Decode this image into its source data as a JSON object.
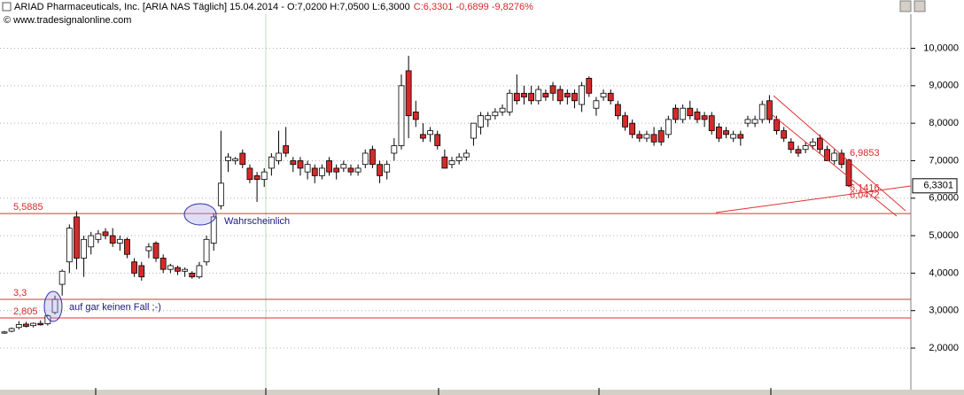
{
  "chart_data": {
    "type": "candlestick",
    "title": "ARIAD Pharmaceuticals, Inc. [ARIA NAS  Täglich] 15.04.2014 - O:7,0200 H:7,0500 L:6,3000",
    "title_change": "C:6,3301 -0,6899 -9,8276%",
    "source": "© www.tradesignalonline.com",
    "up_color": "#ffffff",
    "down_color": "#d42a2a",
    "ylim": [
      0.89,
      10.91
    ],
    "yticks": [
      {
        "value": 2,
        "label": "2,0000"
      },
      {
        "value": 3,
        "label": "3,0000"
      },
      {
        "value": 4,
        "label": "4,0000"
      },
      {
        "value": 5,
        "label": "5,0000"
      },
      {
        "value": 6,
        "label": "6,0000"
      },
      {
        "value": 7,
        "label": "7,0000"
      },
      {
        "value": 8,
        "label": "8,0000"
      },
      {
        "value": 9,
        "label": "9,0000"
      },
      {
        "value": 10,
        "label": "10,0000"
      }
    ],
    "grid": true,
    "last_price": {
      "value": 6.3301,
      "label": "6,3301"
    },
    "levels": [
      {
        "value": 5.5885,
        "label": "5,5885"
      },
      {
        "value": 3.3,
        "label": "3,3"
      },
      {
        "value": 2.805,
        "label": "2,805"
      }
    ],
    "price_labels": [
      {
        "value": 6.9853,
        "label": "6,9853"
      },
      {
        "value": 6.1416,
        "label": "6,1416"
      },
      {
        "value": 6.0472,
        "label": "6,0472"
      }
    ],
    "annotations": [
      "Wahrscheinlich",
      "auf gar keinen Fall ;-)"
    ],
    "open": [
      2.4,
      2.45,
      2.55,
      2.64,
      2.6,
      2.66,
      2.65,
      2.95,
      3.7,
      4.3,
      5.5,
      4.4,
      4.7,
      4.9,
      5.1,
      5.0,
      4.8,
      4.9,
      4.3,
      4.2,
      4.6,
      4.8,
      4.4,
      4.1,
      4.15,
      4.05,
      4.0,
      3.9,
      4.3,
      4.8,
      5.8,
      7.0,
      7.0,
      7.2,
      6.8,
      6.6,
      6.5,
      6.8,
      7.0,
      7.4,
      7.0,
      7.0,
      6.7,
      6.8,
      6.6,
      7.0,
      6.8,
      6.8,
      6.8,
      6.7,
      6.9,
      7.3,
      6.9,
      6.7,
      7.2,
      7.4,
      9.4,
      8.3,
      7.7,
      7.7,
      7.7,
      7.1,
      6.9,
      7.0,
      7.1,
      7.6,
      7.9,
      8.1,
      8.2,
      8.3,
      8.3,
      8.8,
      8.8,
      8.8,
      8.6,
      8.8,
      9.0,
      8.9,
      8.8,
      8.8,
      8.5,
      9.2,
      8.4,
      8.7,
      8.8,
      8.5,
      8.2,
      8.0,
      7.7,
      7.6,
      7.7,
      7.8,
      7.7,
      8.4,
      8.1,
      8.4,
      8.3,
      8.2,
      8.2,
      7.9,
      7.8,
      7.6,
      7.7,
      8.0,
      8.0,
      8.1,
      8.6,
      8.1,
      7.8,
      7.5,
      7.3,
      7.3,
      7.4,
      7.6,
      7.3,
      7.0,
      7.2,
      7.02
    ],
    "high": [
      2.46,
      2.55,
      2.72,
      2.7,
      2.68,
      2.74,
      2.9,
      3.4,
      4.1,
      5.3,
      5.65,
      5.0,
      5.1,
      5.15,
      5.2,
      5.2,
      5.0,
      4.95,
      4.4,
      4.3,
      4.8,
      4.85,
      4.5,
      4.25,
      4.2,
      4.15,
      4.05,
      4.3,
      5.0,
      5.6,
      7.8,
      7.2,
      7.1,
      7.3,
      6.9,
      6.7,
      6.8,
      7.2,
      7.8,
      7.9,
      7.1,
      7.1,
      7.0,
      6.9,
      6.9,
      7.1,
      6.9,
      7.0,
      6.9,
      6.9,
      7.3,
      7.4,
      7.0,
      7.0,
      7.6,
      9.3,
      9.8,
      8.6,
      8.0,
      7.9,
      7.8,
      7.3,
      7.1,
      7.2,
      7.3,
      8.0,
      8.3,
      8.3,
      8.4,
      8.5,
      8.9,
      9.3,
      9.0,
      9.0,
      9.0,
      8.9,
      9.1,
      9.0,
      8.9,
      8.9,
      9.1,
      9.25,
      8.7,
      8.9,
      8.9,
      8.6,
      8.3,
      8.1,
      7.8,
      7.8,
      7.9,
      7.9,
      8.2,
      8.5,
      8.5,
      8.6,
      8.4,
      8.3,
      8.3,
      8.0,
      7.9,
      7.8,
      7.8,
      8.2,
      8.2,
      8.6,
      8.75,
      8.2,
      7.9,
      7.6,
      7.4,
      7.5,
      7.6,
      7.7,
      7.4,
      7.3,
      7.3,
      7.05
    ],
    "low": [
      2.38,
      2.42,
      2.5,
      2.55,
      2.55,
      2.6,
      2.6,
      2.9,
      3.4,
      4.0,
      4.1,
      3.9,
      4.5,
      4.8,
      4.9,
      4.7,
      4.6,
      4.4,
      3.9,
      3.8,
      4.4,
      4.3,
      4.0,
      4.0,
      3.95,
      3.9,
      3.85,
      3.85,
      4.2,
      4.6,
      5.7,
      6.7,
      6.9,
      6.8,
      6.4,
      5.9,
      6.3,
      6.6,
      6.9,
      7.1,
      6.7,
      6.6,
      6.5,
      6.4,
      6.5,
      6.6,
      6.5,
      6.7,
      6.6,
      6.6,
      6.8,
      6.8,
      6.4,
      6.5,
      7.0,
      7.3,
      7.6,
      7.9,
      7.5,
      7.5,
      7.3,
      6.8,
      6.8,
      6.9,
      7.0,
      7.4,
      7.7,
      7.9,
      8.1,
      8.2,
      8.2,
      8.5,
      8.5,
      8.5,
      8.5,
      8.6,
      8.6,
      8.5,
      8.5,
      8.4,
      8.3,
      8.7,
      8.2,
      8.6,
      8.5,
      8.1,
      7.8,
      7.6,
      7.5,
      7.5,
      7.4,
      7.4,
      7.6,
      8.0,
      8.0,
      8.1,
      8.0,
      7.9,
      7.7,
      7.5,
      7.6,
      7.5,
      7.4,
      7.9,
      7.9,
      8.0,
      8.0,
      7.7,
      7.5,
      7.2,
      7.1,
      7.2,
      7.3,
      7.2,
      7.0,
      6.9,
      6.8,
      6.3
    ],
    "close": [
      2.43,
      2.52,
      2.63,
      2.58,
      2.66,
      2.62,
      2.86,
      3.3,
      4.05,
      5.2,
      4.4,
      4.9,
      5.0,
      5.05,
      5.0,
      4.8,
      4.9,
      4.5,
      4.0,
      3.9,
      4.7,
      4.4,
      4.1,
      4.2,
      4.05,
      4.1,
      3.9,
      4.2,
      4.9,
      5.5,
      6.4,
      7.1,
      7.05,
      6.9,
      6.5,
      6.5,
      6.7,
      7.1,
      7.2,
      7.2,
      6.9,
      6.8,
      6.9,
      6.6,
      6.8,
      6.7,
      6.7,
      6.9,
      6.7,
      6.8,
      7.2,
      6.9,
      6.6,
      6.9,
      7.4,
      9.0,
      8.2,
      8.1,
      7.6,
      7.8,
      7.4,
      6.8,
      7.0,
      7.1,
      7.2,
      8.0,
      8.2,
      8.2,
      8.3,
      8.4,
      8.8,
      8.6,
      8.7,
      8.6,
      8.9,
      8.7,
      8.8,
      8.6,
      8.7,
      8.6,
      9.0,
      8.8,
      8.6,
      8.8,
      8.6,
      8.2,
      7.9,
      7.7,
      7.6,
      7.7,
      7.5,
      7.5,
      8.1,
      8.1,
      8.4,
      8.2,
      8.1,
      8.1,
      7.8,
      7.6,
      7.7,
      7.7,
      7.6,
      8.1,
      8.1,
      8.5,
      8.1,
      7.8,
      7.6,
      7.3,
      7.2,
      7.4,
      7.5,
      7.3,
      7.0,
      7.2,
      6.9,
      6.3301
    ]
  }
}
